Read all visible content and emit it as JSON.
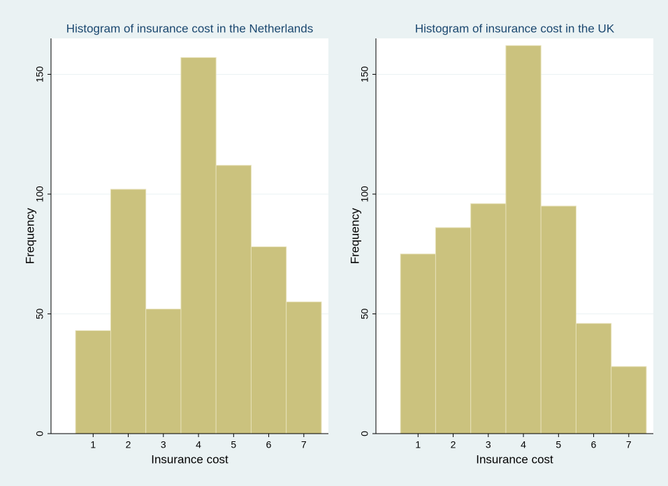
{
  "chart_data": [
    {
      "type": "histogram",
      "title": "Histogram of insurance cost in the Netherlands",
      "x_label": "Insurance cost",
      "y_label": "Frequency",
      "bins": [
        0.5,
        1.5,
        2.5,
        3.5,
        4.5,
        5.5,
        6.5,
        7.5
      ],
      "values": [
        43,
        102,
        52,
        157,
        112,
        78,
        55
      ],
      "color": "#cbc27e",
      "xlim": [
        -0.2,
        7.7
      ],
      "xticks": [
        1,
        2,
        3,
        4,
        5,
        6,
        7
      ],
      "ylim": [
        0,
        165
      ],
      "yticks": [
        0,
        50,
        100,
        150
      ],
      "grid": true
    },
    {
      "type": "histogram",
      "title": "Histogram of insurance cost in the UK",
      "x_label": "Insurance cost",
      "y_label": "Frequency",
      "bins": [
        0.5,
        1.5,
        2.5,
        3.5,
        4.5,
        5.5,
        6.5,
        7.5
      ],
      "values": [
        75,
        86,
        96,
        162,
        95,
        46,
        28
      ],
      "color": "#cbc27e",
      "xlim": [
        -0.2,
        7.7
      ],
      "xticks": [
        1,
        2,
        3,
        4,
        5,
        6,
        7
      ],
      "ylim": [
        0,
        165
      ],
      "yticks": [
        0,
        50,
        100,
        150
      ],
      "grid": true
    }
  ]
}
